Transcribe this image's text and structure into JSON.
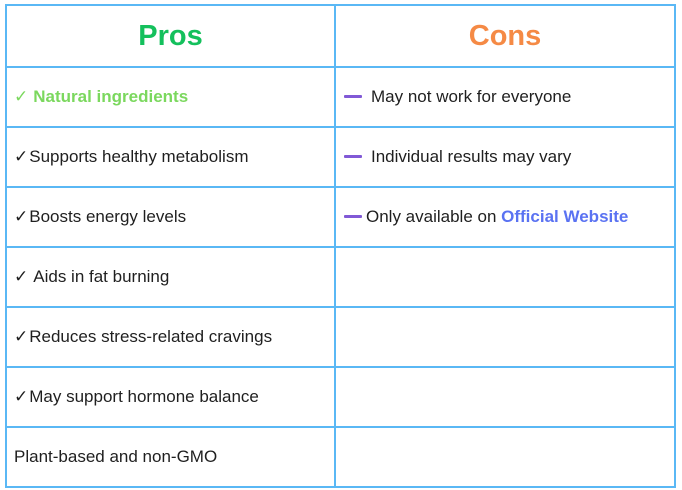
{
  "table": {
    "headers": {
      "pros": "Pros",
      "cons": "Cons"
    },
    "colors": {
      "border": "#5ab8f5",
      "pros_header": "#14c05c",
      "cons_header": "#f58a45",
      "highlight_pro": "#7bd85e",
      "dash": "#8159d6",
      "link": "#5a72f2"
    },
    "pros": [
      {
        "mark": "✓",
        "text": "Natural ingredients"
      },
      {
        "mark": "✓",
        "text": "Supports healthy metabolism"
      },
      {
        "mark": "✓",
        "text": "Boosts energy levels"
      },
      {
        "mark": "✓",
        "text": "Aids in fat burning"
      },
      {
        "mark": "✓",
        "text": "Reduces stress-related cravings"
      },
      {
        "mark": "✓",
        "text": "May support hormone balance"
      },
      {
        "mark": "",
        "text": "Plant-based and non-GMO"
      }
    ],
    "cons": [
      {
        "text": "May not work for everyone"
      },
      {
        "text": "Individual results may vary"
      },
      {
        "text": "Only available on ",
        "link": "Official Website"
      }
    ]
  }
}
